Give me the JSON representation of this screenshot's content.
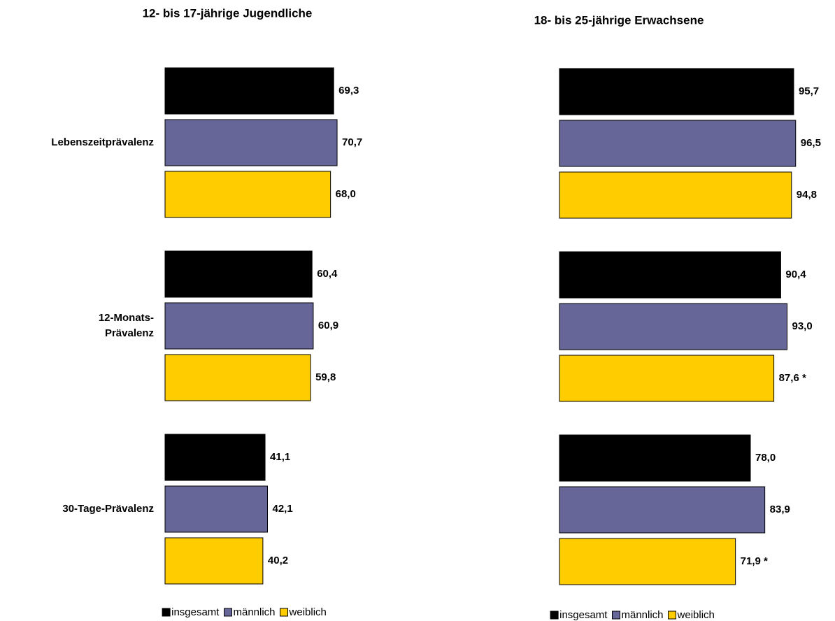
{
  "chart_data": [
    {
      "type": "barh",
      "title": "12- bis 17-jährige Jugendliche",
      "categories": [
        "Lebenszeitprävalenz",
        "12-Monats-\nPrävalenz",
        "30-Tage-Prävalenz"
      ],
      "xlim": [
        0,
        100
      ],
      "series": [
        {
          "name": "insgesamt",
          "color": "#000000",
          "values": [
            69.3,
            60.4,
            41.1
          ],
          "value_labels": [
            "69,3",
            "60,4",
            "41,1"
          ]
        },
        {
          "name": "männlich",
          "color": "#666699",
          "values": [
            70.7,
            60.9,
            42.1
          ],
          "value_labels": [
            "70,7",
            "60,9",
            "42,1"
          ]
        },
        {
          "name": "weiblich",
          "color": "#ffcc00",
          "values": [
            68.0,
            59.8,
            40.2
          ],
          "value_labels": [
            "68,0",
            "59,8",
            "40,2"
          ]
        }
      ]
    },
    {
      "type": "barh",
      "title": "18- bis 25-jährige Erwachsene",
      "categories": [
        null,
        null,
        null
      ],
      "xlim": [
        0,
        100
      ],
      "series": [
        {
          "name": "insgesamt",
          "color": "#000000",
          "values": [
            95.7,
            90.4,
            78.0
          ],
          "value_labels": [
            "95,7",
            "90,4",
            "78,0"
          ]
        },
        {
          "name": "männlich",
          "color": "#666699",
          "values": [
            96.5,
            93.0,
            83.9
          ],
          "value_labels": [
            "96,5",
            "93,0",
            "83,9"
          ]
        },
        {
          "name": "weiblich",
          "color": "#ffcc00",
          "values": [
            94.8,
            87.6,
            71.9
          ],
          "value_labels": [
            "94,8",
            "87,6 *",
            "71,9 *"
          ]
        }
      ]
    }
  ]
}
